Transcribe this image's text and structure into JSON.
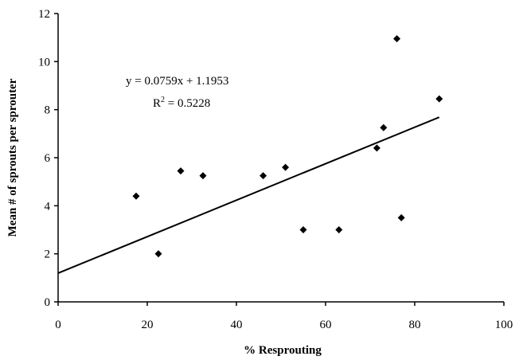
{
  "chart_data": {
    "type": "scatter",
    "title": "",
    "xlabel": "% Resprouting",
    "ylabel": "Mean # of sprouts per sprouter",
    "xlim": [
      0,
      100
    ],
    "ylim": [
      0,
      12
    ],
    "xticks": [
      0,
      20,
      40,
      60,
      80,
      100
    ],
    "yticks": [
      0,
      2,
      4,
      6,
      8,
      10,
      12
    ],
    "grid": false,
    "legend": "none",
    "series": [
      {
        "marker": "diamond",
        "color": "#000000",
        "points": [
          {
            "x": 17.5,
            "y": 4.4
          },
          {
            "x": 22.5,
            "y": 2.0
          },
          {
            "x": 27.5,
            "y": 5.45
          },
          {
            "x": 32.5,
            "y": 5.25
          },
          {
            "x": 46.0,
            "y": 5.25
          },
          {
            "x": 51.0,
            "y": 5.6
          },
          {
            "x": 55.0,
            "y": 3.0
          },
          {
            "x": 63.0,
            "y": 3.0
          },
          {
            "x": 71.5,
            "y": 6.4
          },
          {
            "x": 73.0,
            "y": 7.25
          },
          {
            "x": 76.0,
            "y": 10.95
          },
          {
            "x": 77.0,
            "y": 3.5
          },
          {
            "x": 85.5,
            "y": 8.45
          }
        ]
      }
    ],
    "trendline": {
      "slope": 0.0759,
      "intercept": 1.1953,
      "x_range": [
        0,
        85.5
      ],
      "equation_label": "y = 0.0759x + 1.1953",
      "r2_prefix": "R",
      "r2_exp": "2",
      "r2_suffix": " = 0.5228"
    }
  }
}
